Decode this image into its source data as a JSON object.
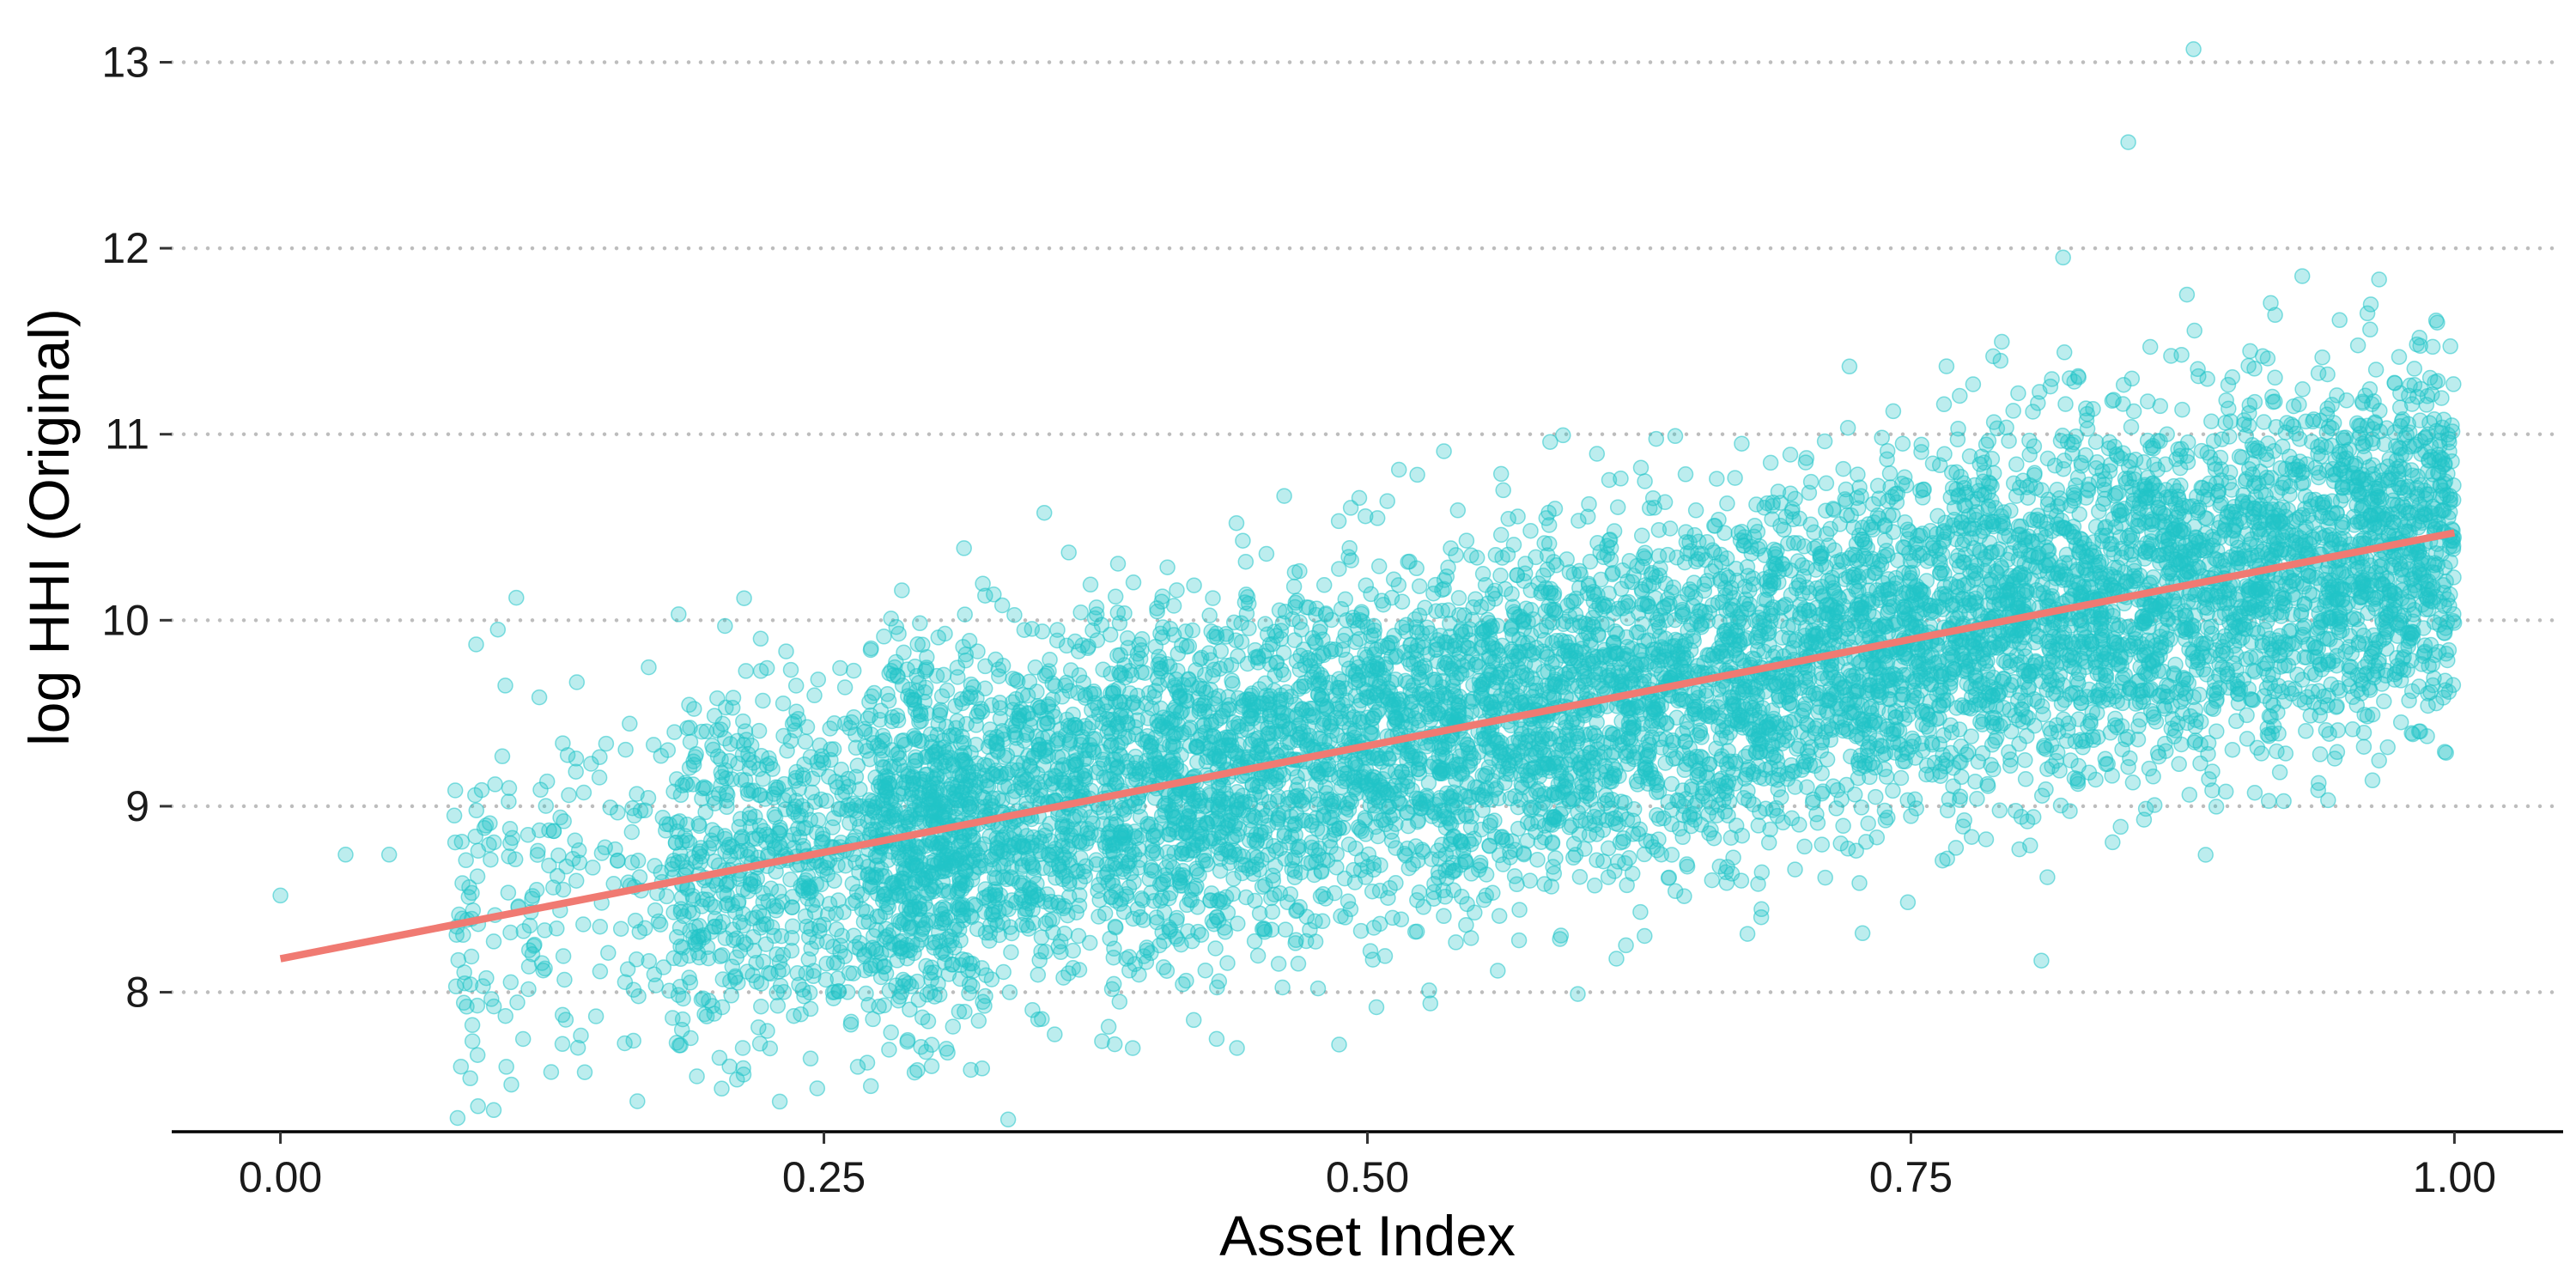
{
  "chart_data": {
    "type": "scatter",
    "title": "",
    "xlabel": "Asset Index",
    "ylabel": "log HHI (Original)",
    "xlim": [
      -0.05,
      1.05
    ],
    "ylim": [
      7.25,
      13.15
    ],
    "x_ticks": [
      0.0,
      0.25,
      0.5,
      0.75,
      1.0
    ],
    "x_tick_labels": [
      "0.00",
      "0.25",
      "0.50",
      "0.75",
      "1.00"
    ],
    "y_ticks": [
      8,
      9,
      10,
      11,
      12,
      13
    ],
    "y_tick_labels": [
      "8",
      "9",
      "10",
      "11",
      "12",
      "13"
    ],
    "grid": "horizontal dotted",
    "legend": "none",
    "colors": {
      "points": "#20C4C8",
      "trend_line": "#F07A72",
      "grid": "#bdbdbd",
      "axis": "#000000"
    },
    "series": [
      {
        "type": "scatter",
        "description_counts": "approx 10000 points, dense band around trend",
        "x_distribution": "asset index 0 to 1, concentrated 0.3-0.95",
        "y_model": {
          "intercept": 8.18,
          "slope": 2.29,
          "noise_sd": 0.48
        },
        "highlight_points": [
          {
            "x": 0.0,
            "y": 8.52
          },
          {
            "x": 0.03,
            "y": 8.74
          },
          {
            "x": 0.05,
            "y": 8.74
          },
          {
            "x": 0.08,
            "y": 8.95
          },
          {
            "x": 0.09,
            "y": 9.87
          },
          {
            "x": 0.1,
            "y": 9.95
          },
          {
            "x": 0.14,
            "y": 7.57
          },
          {
            "x": 0.21,
            "y": 7.53
          },
          {
            "x": 0.44,
            "y": 7.7
          },
          {
            "x": 0.81,
            "y": 8.17
          },
          {
            "x": 0.82,
            "y": 11.95
          },
          {
            "x": 0.85,
            "y": 12.57
          },
          {
            "x": 0.88,
            "y": 13.07
          },
          {
            "x": 0.93,
            "y": 11.85
          },
          {
            "x": 0.96,
            "y": 11.65
          },
          {
            "x": 0.99,
            "y": 11.47
          }
        ]
      },
      {
        "type": "line",
        "points": [
          {
            "x": 0.0,
            "y": 8.18
          },
          {
            "x": 1.0,
            "y": 10.47
          }
        ]
      }
    ]
  }
}
